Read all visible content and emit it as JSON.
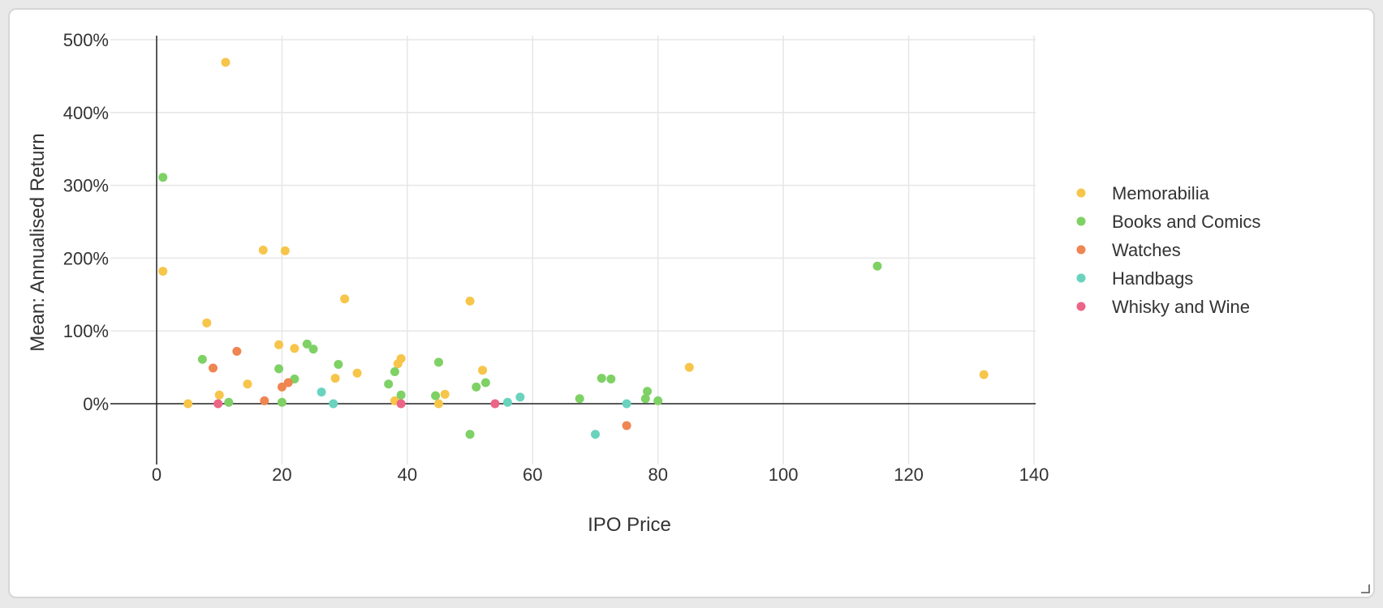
{
  "chart_data": {
    "type": "scatter",
    "xlabel": "IPO Price",
    "ylabel": "Mean: Annualised Return",
    "xlim": [
      -15,
      140
    ],
    "ylim": [
      -0.8,
      5.05
    ],
    "xticks": [
      0,
      20,
      40,
      60,
      80,
      100,
      120,
      140
    ],
    "xtick_labels": [
      "0",
      "20",
      "40",
      "60",
      "80",
      "100",
      "120",
      "140"
    ],
    "yticks": [
      0,
      1,
      2,
      3,
      4,
      5
    ],
    "ytick_labels": [
      "0%",
      "100%",
      "200%",
      "300%",
      "400%",
      "500%"
    ],
    "grid": true,
    "legend_position": "right",
    "series": [
      {
        "name": "Memorabilia",
        "color": "#f6c54a",
        "points": [
          [
            11,
            4.69
          ],
          [
            1,
            1.82
          ],
          [
            8,
            1.11
          ],
          [
            10,
            0.12
          ],
          [
            5,
            0.0
          ],
          [
            14.5,
            0.27
          ],
          [
            17,
            2.11
          ],
          [
            20.5,
            2.1
          ],
          [
            19.5,
            0.81
          ],
          [
            22,
            0.76
          ],
          [
            28.5,
            0.35
          ],
          [
            30,
            1.44
          ],
          [
            32,
            0.42
          ],
          [
            38,
            0.04
          ],
          [
            38.5,
            0.55
          ],
          [
            39,
            0.62
          ],
          [
            45,
            0.0
          ],
          [
            46,
            0.13
          ],
          [
            50,
            1.41
          ],
          [
            52,
            0.46
          ],
          [
            85,
            0.5
          ],
          [
            132,
            0.4
          ]
        ]
      },
      {
        "name": "Books and Comics",
        "color": "#7ed164",
        "points": [
          [
            1,
            3.11
          ],
          [
            7.3,
            0.61
          ],
          [
            11.5,
            0.02
          ],
          [
            19.5,
            0.48
          ],
          [
            20,
            0.02
          ],
          [
            22,
            0.34
          ],
          [
            24,
            0.82
          ],
          [
            25,
            0.75
          ],
          [
            29,
            0.54
          ],
          [
            37,
            0.27
          ],
          [
            38,
            0.44
          ],
          [
            39,
            0.12
          ],
          [
            44.5,
            0.11
          ],
          [
            45,
            0.57
          ],
          [
            50,
            -0.42
          ],
          [
            51,
            0.23
          ],
          [
            52.5,
            0.29
          ],
          [
            67.5,
            0.07
          ],
          [
            71,
            0.35
          ],
          [
            72.5,
            0.34
          ],
          [
            78,
            0.07
          ],
          [
            78.3,
            0.17
          ],
          [
            80,
            0.04
          ],
          [
            115,
            1.89
          ]
        ]
      },
      {
        "name": "Watches",
        "color": "#ef8550",
        "points": [
          [
            9,
            0.49
          ],
          [
            12.8,
            0.72
          ],
          [
            17.2,
            0.04
          ],
          [
            20,
            0.23
          ],
          [
            21,
            0.29
          ],
          [
            75,
            -0.3
          ]
        ]
      },
      {
        "name": "Handbags",
        "color": "#69d3bd",
        "points": [
          [
            26.3,
            0.16
          ],
          [
            28.2,
            0.0
          ],
          [
            56,
            0.02
          ],
          [
            58,
            0.09
          ],
          [
            70,
            -0.42
          ],
          [
            75,
            0.0
          ]
        ]
      },
      {
        "name": "Whisky and Wine",
        "color": "#ec6586",
        "points": [
          [
            9.8,
            0.0
          ],
          [
            39,
            0.0
          ],
          [
            54,
            0.0
          ]
        ]
      }
    ]
  }
}
